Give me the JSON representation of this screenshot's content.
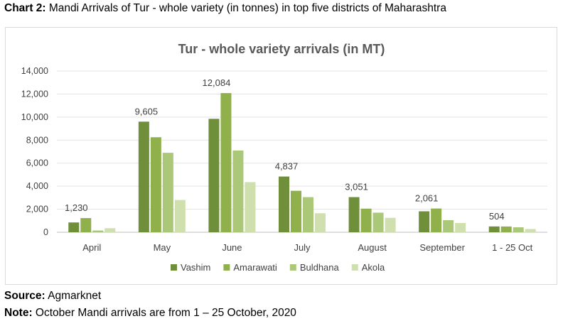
{
  "caption": {
    "label": "Chart 2:",
    "text": " Mandi Arrivals of Tur - whole variety (in tonnes) in top five districts of Maharashtra"
  },
  "footer": {
    "source_label": "Source:",
    "source_text": " Agmarknet",
    "note_label": "Note:",
    "note_text": " October Mandi arrivals are from 1 – 25 October, 2020"
  },
  "chart_data": {
    "type": "bar",
    "title": "Tur - whole variety arrivals (in MT)",
    "categories": [
      "April",
      "May",
      "June",
      "July",
      "August",
      "September",
      "1 - 25 Oct"
    ],
    "series": [
      {
        "name": "Vashim",
        "color": "#6f8f3a",
        "values": [
          850,
          9605,
          9850,
          4837,
          3051,
          1820,
          504
        ]
      },
      {
        "name": "Amarawati",
        "color": "#8fb04a",
        "values": [
          1230,
          8250,
          12084,
          3600,
          2050,
          2061,
          500
        ]
      },
      {
        "name": "Buldhana",
        "color": "#abc878",
        "values": [
          150,
          6900,
          7100,
          3050,
          1700,
          1050,
          430
        ]
      },
      {
        "name": "Akola",
        "color": "#cfdfae",
        "values": [
          350,
          2800,
          4350,
          1650,
          1250,
          800,
          280
        ]
      }
    ],
    "data_labels": [
      "1,230",
      "9,605",
      "12,084",
      "4,837",
      "3,051",
      "2,061",
      "504"
    ],
    "y_ticks": [
      "0",
      "2,000",
      "4,000",
      "6,000",
      "8,000",
      "10,000",
      "12,000",
      "14,000"
    ],
    "ylim": [
      0,
      14000
    ],
    "grid": true,
    "legend_position": "bottom"
  }
}
